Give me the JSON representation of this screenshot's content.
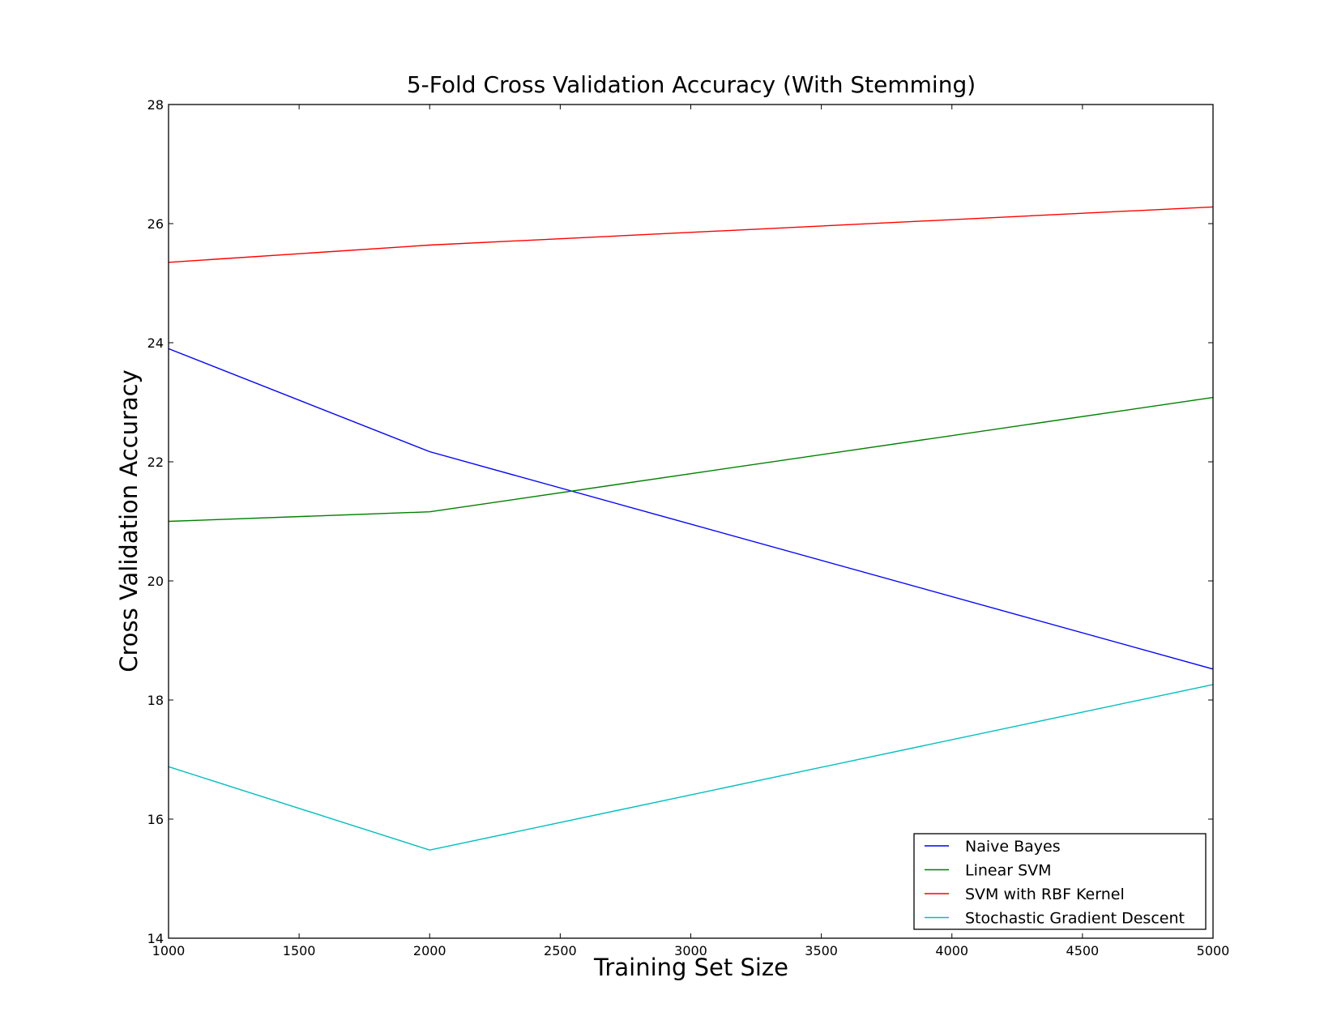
{
  "chart_data": {
    "type": "line",
    "title": "5-Fold Cross Validation Accuracy (With Stemming)",
    "xlabel": "Training Set Size",
    "ylabel": "Cross Validation Accuracy",
    "xlim": [
      1000,
      5000
    ],
    "ylim": [
      14,
      28
    ],
    "xticks": [
      1000,
      1500,
      2000,
      2500,
      3000,
      3500,
      4000,
      4500,
      5000
    ],
    "yticks": [
      14,
      16,
      18,
      20,
      22,
      24,
      26,
      28
    ],
    "grid": false,
    "legend_position": "lower-right",
    "x": [
      1000,
      2000,
      5000
    ],
    "series": [
      {
        "name": "Naive Bayes",
        "color": "#0000ff",
        "values": [
          23.9,
          22.17,
          18.52
        ]
      },
      {
        "name": "Linear SVM",
        "color": "#008000",
        "values": [
          21.0,
          21.16,
          23.08
        ]
      },
      {
        "name": "SVM with RBF Kernel",
        "color": "#ff0000",
        "values": [
          25.35,
          25.64,
          26.28
        ]
      },
      {
        "name": "Stochastic Gradient Descent",
        "color": "#00bfbf",
        "values": [
          16.88,
          15.48,
          18.26
        ]
      }
    ]
  }
}
